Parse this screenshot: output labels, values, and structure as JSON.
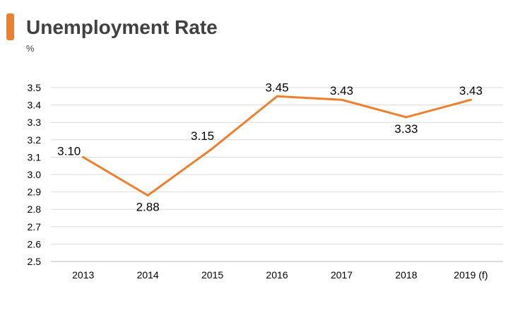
{
  "header": {
    "title": "Unemployment Rate",
    "unit": "%"
  },
  "colors": {
    "accent": "#f07f2d",
    "line": "#f07f2d",
    "grid": "#d9d9d9",
    "axis": "#bfbfbf",
    "title_text": "#404040"
  },
  "chart_data": {
    "type": "line",
    "title": "Unemployment Rate",
    "ylabel": "%",
    "xlabel": "",
    "categories": [
      "2013",
      "2014",
      "2015",
      "2016",
      "2017",
      "2018",
      "2019 (f)"
    ],
    "series": [
      {
        "values": [
          3.1,
          2.88,
          3.15,
          3.45,
          3.43,
          3.33,
          3.43
        ],
        "labels": [
          "3.10",
          "2.88",
          "3.15",
          "3.45",
          "3.43",
          "3.33",
          "3.43"
        ]
      }
    ],
    "ylim": [
      2.5,
      3.5
    ],
    "yticks": [
      "2.5",
      "2.6",
      "2.7",
      "2.8",
      "2.9",
      "3.0",
      "3.1",
      "3.2",
      "3.3",
      "3.4",
      "3.5"
    ],
    "grid": true,
    "legend": "none"
  }
}
